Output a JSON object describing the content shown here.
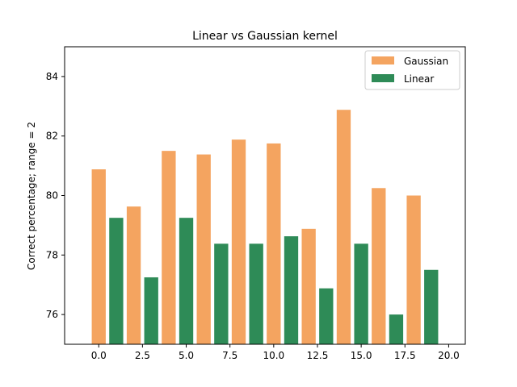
{
  "chart_data": {
    "type": "bar",
    "title": "Linear vs Gaussian kernel",
    "xlabel": "",
    "ylabel": "Correct percentage; range = 2",
    "xlim": [
      -1.95,
      20.95
    ],
    "ylim": [
      75.0,
      85.0
    ],
    "x_ticks": [
      0.0,
      2.5,
      5.0,
      7.5,
      10.0,
      12.5,
      15.0,
      17.5,
      20.0
    ],
    "x_tick_labels": [
      "0.0",
      "2.5",
      "5.0",
      "7.5",
      "10.0",
      "12.5",
      "15.0",
      "17.5",
      "20.0"
    ],
    "y_ticks": [
      76,
      78,
      80,
      82,
      84
    ],
    "y_tick_labels": [
      "76",
      "78",
      "80",
      "82",
      "84"
    ],
    "bar_width": 0.8,
    "grid": false,
    "legend": {
      "position": "top-right"
    },
    "series": [
      {
        "name": "Gaussian",
        "color": "#f4a460",
        "x": [
          0,
          2,
          4,
          6,
          8,
          10,
          12,
          14,
          16,
          18
        ],
        "values": [
          80.88,
          79.63,
          81.5,
          81.38,
          81.88,
          81.75,
          78.88,
          82.88,
          80.25,
          80.0
        ]
      },
      {
        "name": "Linear",
        "color": "#2e8b57",
        "x": [
          1,
          3,
          5,
          7,
          9,
          11,
          13,
          15,
          17,
          19
        ],
        "values": [
          79.25,
          77.25,
          79.25,
          78.38,
          78.38,
          78.63,
          76.88,
          78.38,
          76.0,
          77.5
        ]
      }
    ]
  }
}
